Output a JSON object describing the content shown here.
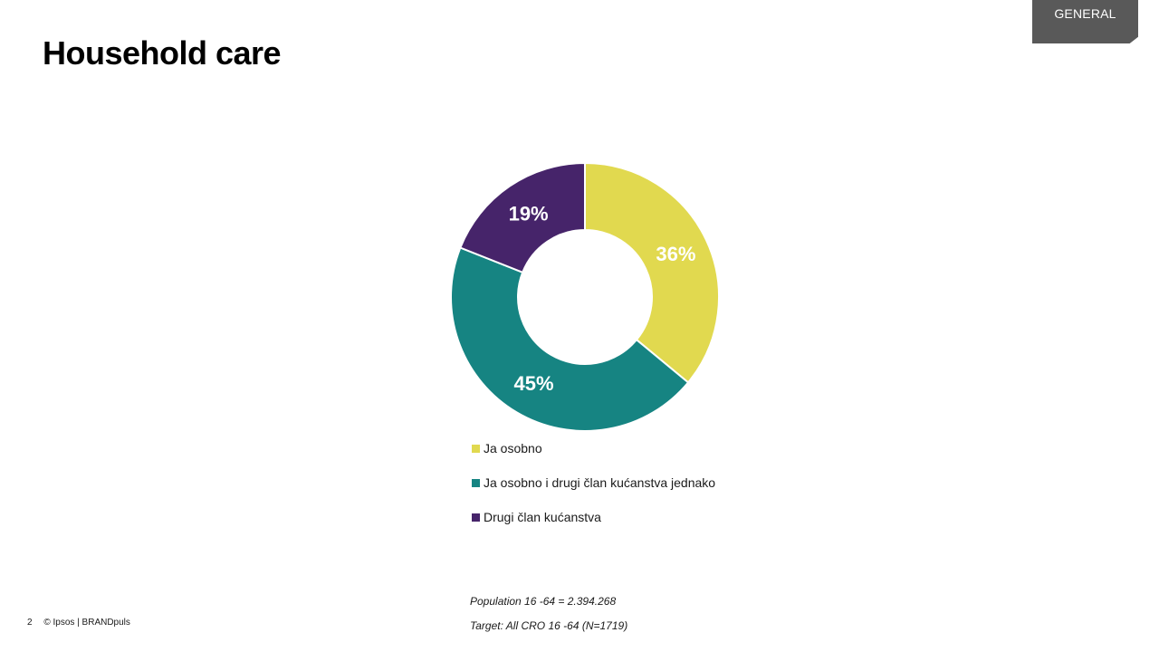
{
  "header": {
    "tag": "GENERAL",
    "title": "Household care"
  },
  "chart_data": {
    "type": "pie",
    "variant": "donut",
    "categories": [
      "Ja osobno",
      "Ja osobno i drugi član kućanstva jednako",
      "Drugi član kućanstva"
    ],
    "values": [
      36,
      45,
      19
    ],
    "data_labels": [
      "36%",
      "45%",
      "19%"
    ],
    "colors": [
      "#E1D94F",
      "#168482",
      "#46246A"
    ],
    "legend_position": "bottom"
  },
  "notes": {
    "population": "Population 16  -64 = 2.394.268",
    "target": "Target: All CRO 16  -64 (N=1719)"
  },
  "footer": {
    "page_number": "2",
    "copyright": "© Ipsos | BRANDpuls"
  }
}
